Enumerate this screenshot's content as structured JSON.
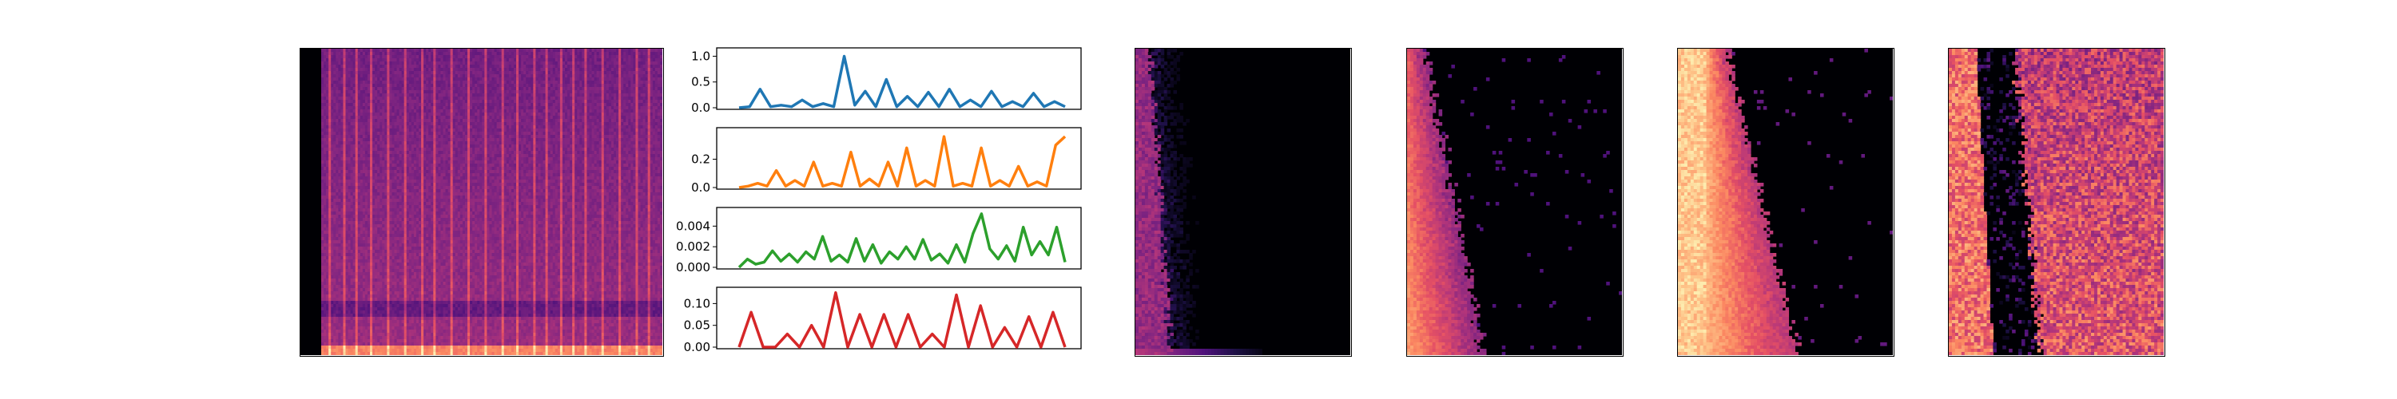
{
  "chart_data": [
    {
      "type": "heatmap",
      "title": "",
      "xlabel": "",
      "ylabel": "",
      "colormap": "magma",
      "axes_visible": false,
      "pattern": "full-band spectrogram with vertical onset stripes"
    },
    {
      "type": "line",
      "panels": [
        {
          "color": "#1f77b4",
          "ylim": [
            0,
            1.1
          ],
          "yticks": [
            "0.0",
            "0.5",
            "1.0"
          ],
          "values": [
            0,
            0.02,
            0.36,
            0.02,
            0.05,
            0.02,
            0.15,
            0.02,
            0.08,
            0.02,
            1.0,
            0.05,
            0.32,
            0.02,
            0.55,
            0.02,
            0.22,
            0.02,
            0.3,
            0.02,
            0.36,
            0.02,
            0.15,
            0.02,
            0.32,
            0.02,
            0.12,
            0.02,
            0.28,
            0.02,
            0.12,
            0.02
          ]
        },
        {
          "color": "#ff7f0e",
          "ylim": [
            0,
            0.4
          ],
          "yticks": [
            "0.0",
            "0.2"
          ],
          "values": [
            0,
            0.01,
            0.03,
            0.01,
            0.12,
            0.01,
            0.05,
            0.01,
            0.18,
            0.01,
            0.03,
            0.01,
            0.25,
            0.01,
            0.06,
            0.01,
            0.18,
            0.01,
            0.28,
            0.01,
            0.05,
            0.01,
            0.36,
            0.01,
            0.03,
            0.01,
            0.28,
            0.01,
            0.05,
            0.01,
            0.15,
            0.01,
            0.04,
            0.01,
            0.3,
            0.36
          ]
        },
        {
          "color": "#2ca02c",
          "ylim": [
            0,
            0.0055
          ],
          "yticks": [
            "0.000",
            "0.002",
            "0.004"
          ],
          "values": [
            0,
            0.0008,
            0.0003,
            0.0005,
            0.0016,
            0.0006,
            0.0013,
            0.0005,
            0.0015,
            0.0008,
            0.003,
            0.0006,
            0.0012,
            0.0005,
            0.0028,
            0.0006,
            0.0022,
            0.0004,
            0.0015,
            0.0008,
            0.002,
            0.0008,
            0.0027,
            0.0007,
            0.0013,
            0.0004,
            0.0022,
            0.0005,
            0.0033,
            0.0052,
            0.0018,
            0.0008,
            0.0021,
            0.0006,
            0.0039,
            0.0012,
            0.0025,
            0.0012,
            0.0039,
            0.0005
          ]
        },
        {
          "color": "#d62728",
          "ylim": [
            0,
            0.13
          ],
          "yticks": [
            "0.00",
            "0.05",
            "0.10"
          ],
          "values": [
            0,
            0.08,
            0.0,
            0.0,
            0.03,
            0.0,
            0.05,
            0.0,
            0.125,
            0.0,
            0.075,
            0.0,
            0.075,
            0.0,
            0.075,
            0.0,
            0.03,
            0.0,
            0.12,
            0.0,
            0.095,
            0.0,
            0.045,
            0.0,
            0.07,
            0.0,
            0.08,
            0.0
          ]
        }
      ]
    },
    {
      "type": "heatmap",
      "colormap": "magma",
      "axes_visible": false,
      "pattern": "energy concentrated at left edge, decaying to the right"
    },
    {
      "type": "heatmap",
      "colormap": "magma",
      "axes_visible": false,
      "pattern": "bright left band widening toward bottom"
    },
    {
      "type": "heatmap",
      "colormap": "magma",
      "axes_visible": false,
      "pattern": "very bright left band (about 15-40% of width) widening toward bottom"
    },
    {
      "type": "heatmap",
      "colormap": "magma",
      "axes_visible": false,
      "pattern": "bright left band, dark gap, bright right region"
    }
  ]
}
